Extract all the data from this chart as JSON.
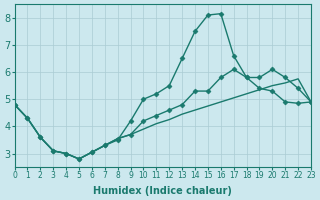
{
  "xlabel": "Humidex (Indice chaleur)",
  "bg_color": "#cce8ee",
  "grid_color": "#aaccd4",
  "line_color": "#1a7a6e",
  "xlim": [
    0,
    23
  ],
  "ylim": [
    2.5,
    8.5
  ],
  "xticks": [
    0,
    1,
    2,
    3,
    4,
    5,
    6,
    7,
    8,
    9,
    10,
    11,
    12,
    13,
    14,
    15,
    16,
    17,
    18,
    19,
    20,
    21,
    22,
    23
  ],
  "yticks": [
    3,
    4,
    5,
    6,
    7,
    8
  ],
  "line1_x": [
    0,
    1,
    2,
    3,
    4,
    5,
    6,
    7,
    8,
    9,
    10,
    11,
    12,
    13,
    14,
    15,
    16,
    17,
    18,
    19,
    20,
    21,
    22,
    23
  ],
  "line1_y": [
    4.8,
    4.3,
    3.6,
    3.1,
    3.0,
    2.8,
    3.05,
    3.3,
    3.5,
    4.2,
    5.0,
    5.2,
    5.5,
    6.5,
    7.5,
    8.1,
    8.15,
    6.6,
    5.8,
    5.8,
    6.1,
    5.8,
    5.4,
    4.9
  ],
  "line2_x": [
    0,
    1,
    2,
    3,
    4,
    5,
    6,
    7,
    8,
    9,
    10,
    11,
    12,
    13,
    14,
    15,
    16,
    17,
    18,
    19,
    20,
    21,
    22,
    23
  ],
  "line2_y": [
    4.8,
    4.3,
    3.6,
    3.1,
    3.0,
    2.8,
    3.05,
    3.3,
    3.55,
    3.7,
    4.2,
    4.4,
    4.6,
    4.8,
    5.3,
    5.3,
    5.8,
    6.1,
    5.8,
    5.4,
    5.3,
    4.9,
    4.85,
    4.9
  ],
  "line3_x": [
    0,
    1,
    2,
    3,
    4,
    5,
    6,
    7,
    8,
    9,
    10,
    11,
    12,
    13,
    14,
    15,
    16,
    17,
    18,
    19,
    20,
    21,
    22,
    23
  ],
  "line3_y": [
    4.8,
    4.3,
    3.6,
    3.1,
    3.0,
    2.8,
    3.05,
    3.3,
    3.55,
    3.7,
    3.9,
    4.1,
    4.25,
    4.45,
    4.6,
    4.75,
    4.9,
    5.05,
    5.2,
    5.35,
    5.5,
    5.6,
    5.75,
    4.9
  ]
}
